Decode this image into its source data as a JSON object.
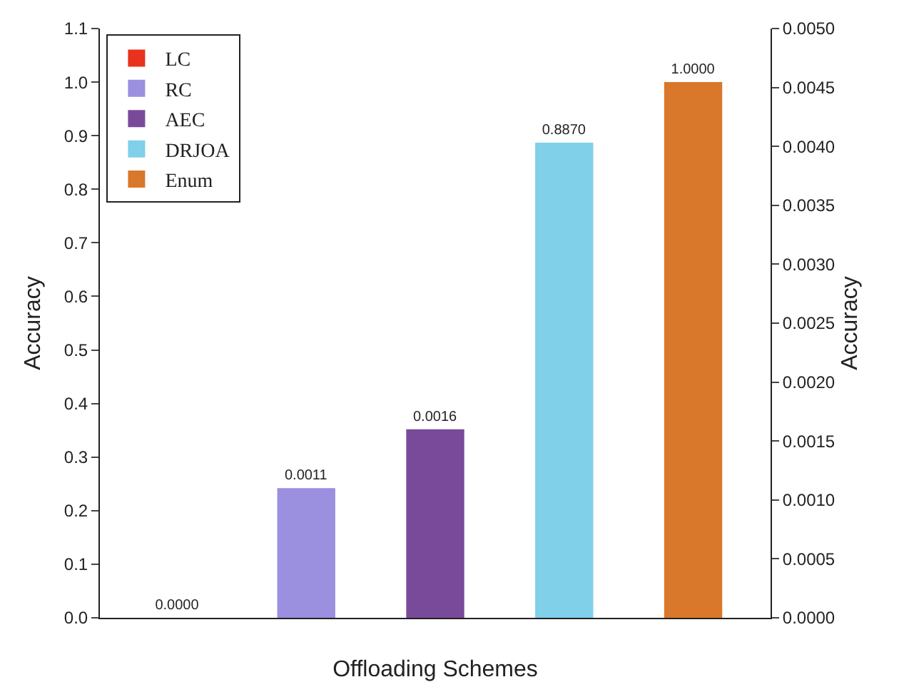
{
  "chart_data": {
    "type": "bar",
    "xlabel": "Offloading Schemes",
    "ylabel": "Accuracy",
    "y2label": "Accuracy",
    "categories": [
      null,
      null,
      null,
      null,
      null
    ],
    "series": [
      {
        "name": "LC",
        "color": "#e8321e",
        "axis": "y2",
        "values": [
          0.0,
          null,
          null,
          null,
          null
        ],
        "value_labels": [
          "0.0000",
          null,
          null,
          null,
          null
        ]
      },
      {
        "name": "RC",
        "color": "#9b8fe0",
        "axis": "y2",
        "values": [
          null,
          0.0011,
          null,
          null,
          null
        ],
        "value_labels": [
          null,
          "0.0011",
          null,
          null,
          null
        ]
      },
      {
        "name": "AEC",
        "color": "#7a4a9a",
        "axis": "y2",
        "values": [
          null,
          null,
          0.0016,
          null,
          null
        ],
        "value_labels": [
          null,
          null,
          "0.0016",
          null,
          null
        ]
      },
      {
        "name": "DRJOA",
        "color": "#7fd0e8",
        "values": [
          null,
          null,
          null,
          0.887,
          null
        ],
        "value_labels": [
          null,
          null,
          null,
          "0.8870",
          null
        ]
      },
      {
        "name": "Enum",
        "color": "#d9782a",
        "values": [
          null,
          null,
          null,
          null,
          1.0
        ],
        "value_labels": [
          null,
          null,
          null,
          null,
          "1.0000"
        ]
      }
    ],
    "ylim": [
      0,
      1.1
    ],
    "yticks": [
      {
        "value": 0,
        "label": "0.0"
      },
      {
        "value": 0.1,
        "label": "0.1"
      },
      {
        "value": 0.2,
        "label": "0.2"
      },
      {
        "value": 0.3,
        "label": "0.3"
      },
      {
        "value": 0.4,
        "label": "0.4"
      },
      {
        "value": 0.5,
        "label": "0.5"
      },
      {
        "value": 0.6,
        "label": "0.6"
      },
      {
        "value": 0.7,
        "label": "0.7"
      },
      {
        "value": 0.8,
        "label": "0.8"
      },
      {
        "value": 0.9,
        "label": "0.9"
      },
      {
        "value": 1.0,
        "label": "1.0"
      },
      {
        "value": 1.1,
        "label": "1.1"
      }
    ],
    "y2lim": [
      0,
      0.005
    ],
    "y2ticks": [
      {
        "value": 0,
        "label": "0.0000"
      },
      {
        "value": 0.0005,
        "label": "0.0005"
      },
      {
        "value": 0.001,
        "label": "0.0010"
      },
      {
        "value": 0.0015,
        "label": "0.0015"
      },
      {
        "value": 0.002,
        "label": "0.0020"
      },
      {
        "value": 0.0025,
        "label": "0.0025"
      },
      {
        "value": 0.003,
        "label": "0.0030"
      },
      {
        "value": 0.0035,
        "label": "0.0035"
      },
      {
        "value": 0.004,
        "label": "0.0040"
      },
      {
        "value": 0.0045,
        "label": "0.0045"
      },
      {
        "value": 0.005,
        "label": "0.0050"
      }
    ],
    "grid": false,
    "legend": "top left"
  }
}
